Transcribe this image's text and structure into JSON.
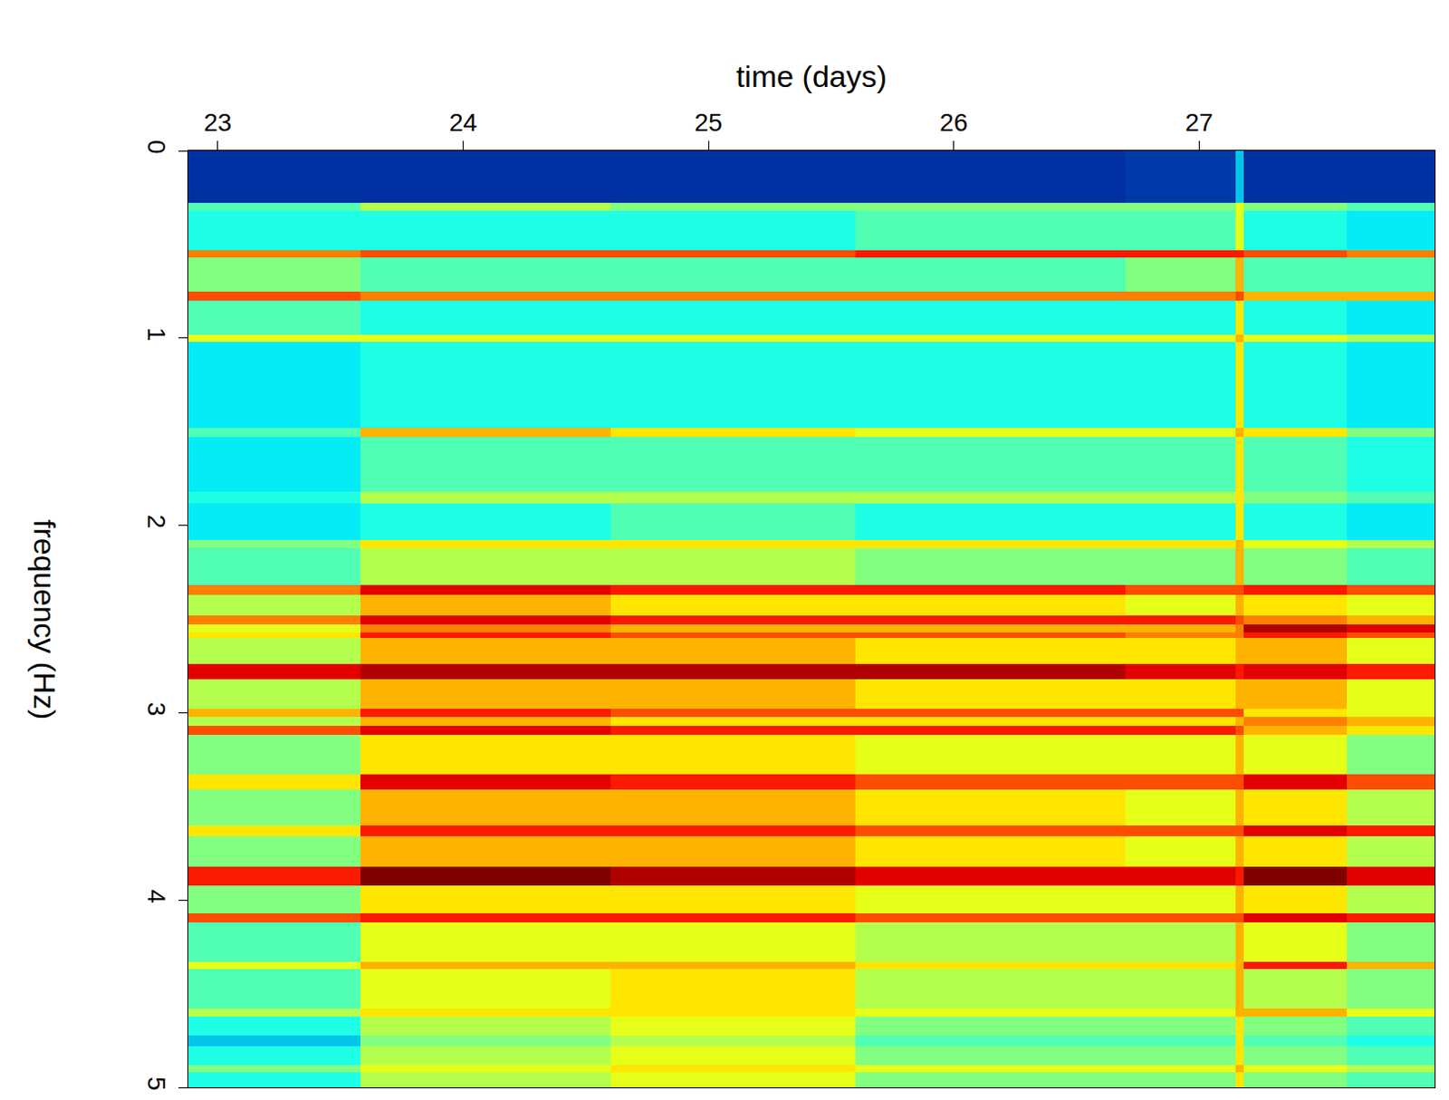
{
  "chart_data": {
    "type": "heatmap",
    "x_label": "time (days)",
    "y_label": "frequency (Hz)",
    "color": "Jet",
    "xlim": [
      22.88,
      27.96
    ],
    "ylim": [
      0,
      5
    ],
    "xticks": [
      23,
      24,
      25,
      26,
      27
    ],
    "yticks": [
      0,
      1,
      2,
      3,
      4,
      5
    ],
    "zlim": [
      0,
      10
    ],
    "x_edges": [
      22.88,
      23.58,
      24.6,
      25.6,
      26.7,
      27.15,
      27.18,
      27.6,
      27.96
    ],
    "y_edges": [
      0,
      0.28,
      0.32,
      0.53,
      0.57,
      0.75,
      0.8,
      0.98,
      1.02,
      1.48,
      1.53,
      1.82,
      1.88,
      2.08,
      2.12,
      2.32,
      2.37,
      2.48,
      2.53,
      2.57,
      2.6,
      2.74,
      2.82,
      2.98,
      3.02,
      3.07,
      3.12,
      3.33,
      3.41,
      3.6,
      3.66,
      3.82,
      3.92,
      4.07,
      4.12,
      4.33,
      4.37,
      4.58,
      4.62,
      4.72,
      4.78,
      4.88,
      4.92,
      5.0
    ],
    "cells": [
      [
        1,
        1,
        1,
        1,
        1.2,
        3,
        1,
        1
      ],
      [
        4.5,
        5.5,
        5,
        5,
        5,
        6,
        5,
        4.5
      ],
      [
        4,
        4,
        4,
        4.5,
        4.5,
        6,
        4,
        3.5
      ],
      [
        7.5,
        8,
        8,
        8.5,
        8.5,
        8.5,
        8,
        7.5
      ],
      [
        5,
        4.5,
        4.5,
        4.5,
        5,
        7,
        4.5,
        4.5
      ],
      [
        8,
        7.5,
        7.5,
        7.5,
        7.5,
        8,
        7,
        7
      ],
      [
        4.5,
        4,
        4,
        4,
        4,
        6.5,
        4,
        3.5
      ],
      [
        6,
        6,
        6,
        6,
        6,
        7,
        6,
        5.5
      ],
      [
        3.5,
        4,
        4,
        4,
        4,
        6.5,
        4,
        3.5
      ],
      [
        4.5,
        7,
        6.5,
        6,
        6,
        7,
        6.5,
        5
      ],
      [
        3.5,
        4.5,
        4.5,
        4.5,
        4.5,
        6.5,
        4.5,
        4
      ],
      [
        4,
        5.5,
        5.5,
        5.5,
        5.5,
        6.5,
        5,
        4.5
      ],
      [
        3.5,
        4,
        4.5,
        4,
        4,
        6.5,
        4,
        3.5
      ],
      [
        5,
        6.5,
        6.5,
        6.5,
        6.5,
        7,
        6,
        5.5
      ],
      [
        4.5,
        5.5,
        5.5,
        5,
        5,
        7,
        5,
        4.5
      ],
      [
        7.5,
        9,
        8.5,
        8.5,
        8,
        8,
        8.5,
        8
      ],
      [
        5.5,
        7,
        6.5,
        6.5,
        6,
        7,
        6.5,
        6
      ],
      [
        7.5,
        9,
        8.5,
        8.5,
        8.5,
        8,
        7.5,
        7
      ],
      [
        6,
        7.5,
        7,
        7,
        7,
        7.5,
        9.5,
        9
      ],
      [
        6.5,
        8.5,
        8,
        8,
        7.5,
        7.5,
        8.5,
        8
      ],
      [
        5.5,
        7,
        7,
        6.5,
        6.5,
        7,
        7,
        6
      ],
      [
        9,
        9.5,
        9.5,
        9.5,
        9,
        8.5,
        9,
        8.5
      ],
      [
        5.5,
        7,
        7,
        6.5,
        6.5,
        7,
        7,
        6
      ],
      [
        7,
        8.5,
        8,
        8,
        8,
        8,
        6.5,
        6
      ],
      [
        5.5,
        7,
        6.5,
        6.5,
        6.5,
        7,
        7.5,
        7
      ],
      [
        8,
        9,
        8.5,
        8.5,
        8.5,
        8,
        7,
        6.5
      ],
      [
        5,
        6.5,
        6.5,
        6,
        6,
        7,
        6,
        5
      ],
      [
        6.5,
        9,
        8.5,
        8,
        8,
        8,
        9,
        8
      ],
      [
        5,
        7,
        7,
        6.5,
        6,
        7,
        6.5,
        5.5
      ],
      [
        6.5,
        8.5,
        8.5,
        8,
        8,
        8,
        9,
        8.5
      ],
      [
        5,
        7,
        7,
        6.5,
        6,
        7,
        6.5,
        5.5
      ],
      [
        8.5,
        10,
        9.5,
        9,
        9,
        8.5,
        10,
        9
      ],
      [
        5,
        6.5,
        6.5,
        6,
        6,
        7,
        6.5,
        5.5
      ],
      [
        8,
        8.5,
        8.5,
        8,
        8,
        8,
        9,
        8.5
      ],
      [
        4.5,
        6,
        6,
        5.5,
        5.5,
        7,
        6,
        5
      ],
      [
        6,
        7,
        7,
        6.5,
        6.5,
        7,
        8.5,
        7
      ],
      [
        4.5,
        6,
        6.5,
        5.5,
        5.5,
        7,
        5.5,
        5
      ],
      [
        5.5,
        6.5,
        6.5,
        6,
        6,
        7,
        7,
        6
      ],
      [
        4,
        5.5,
        6,
        5,
        5,
        6.5,
        5,
        4.5
      ],
      [
        3,
        5,
        5.5,
        4.5,
        4.5,
        6.5,
        4.5,
        4
      ],
      [
        4,
        5.5,
        6,
        5,
        5,
        6.5,
        5,
        4.5
      ],
      [
        5,
        6,
        6.5,
        6,
        6,
        7,
        6,
        5.5
      ],
      [
        4,
        5.5,
        6,
        5,
        5,
        6.5,
        5,
        4.5
      ]
    ]
  }
}
